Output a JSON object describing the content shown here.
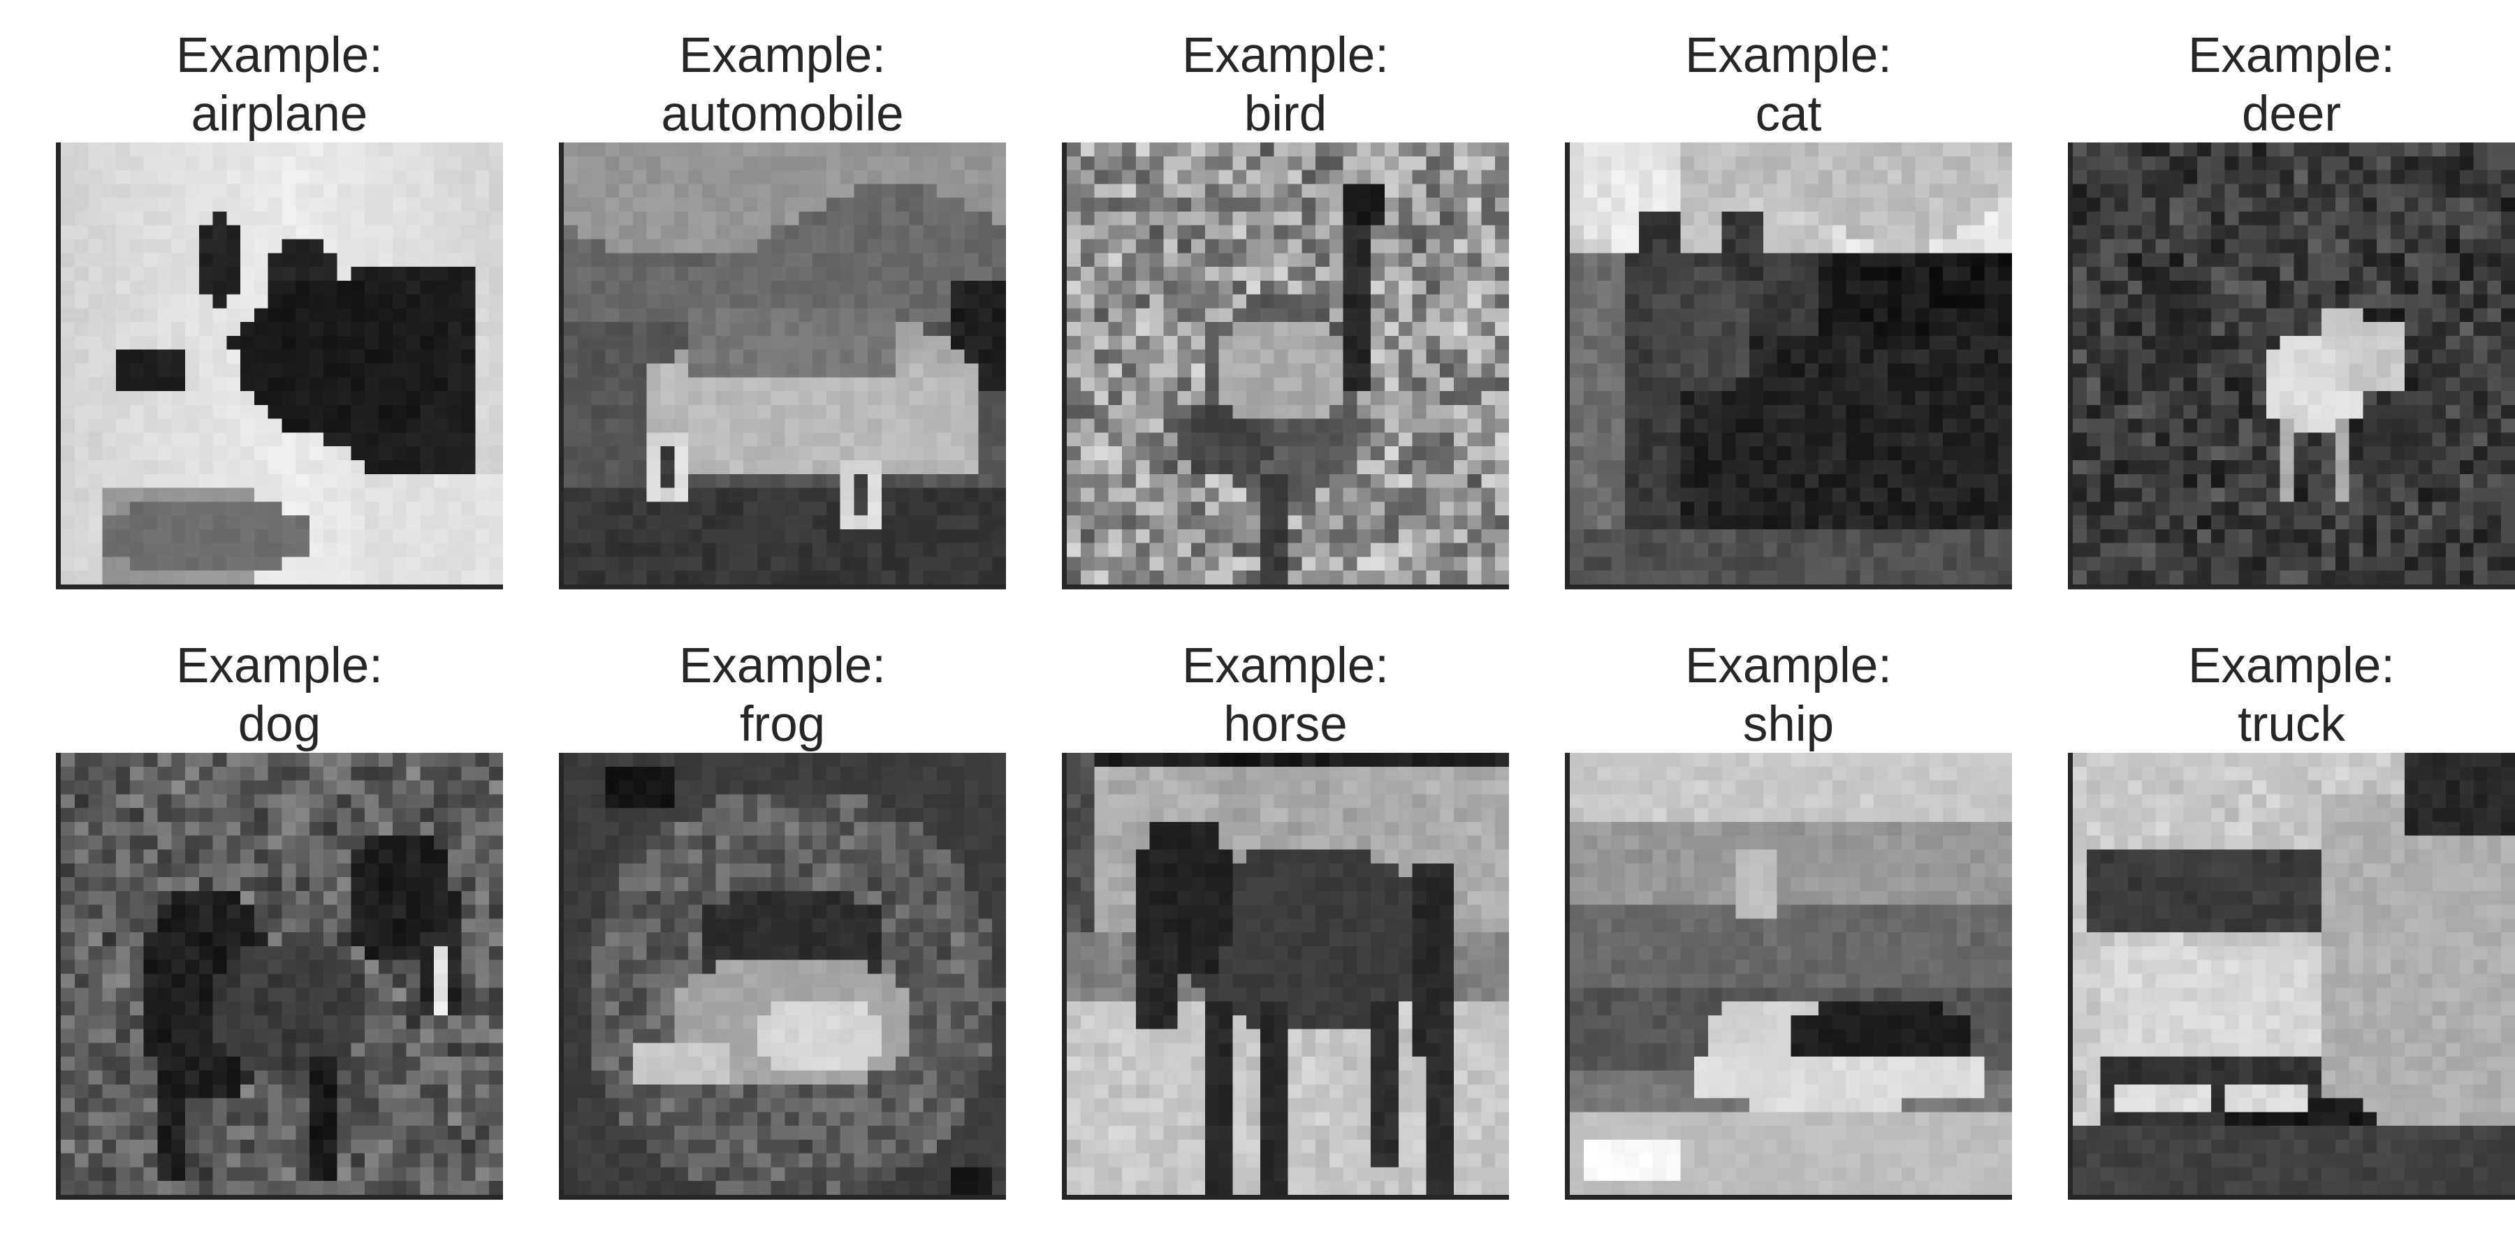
{
  "title_prefix": "Example:",
  "examples": [
    {
      "label": "airplane"
    },
    {
      "label": "automobile"
    },
    {
      "label": "bird"
    },
    {
      "label": "cat"
    },
    {
      "label": "deer"
    },
    {
      "label": "dog"
    },
    {
      "label": "frog"
    },
    {
      "label": "horse"
    },
    {
      "label": "ship"
    },
    {
      "label": "truck"
    }
  ],
  "colors": {
    "text": "#262626",
    "axis": "#262626",
    "background": "#ffffff"
  }
}
